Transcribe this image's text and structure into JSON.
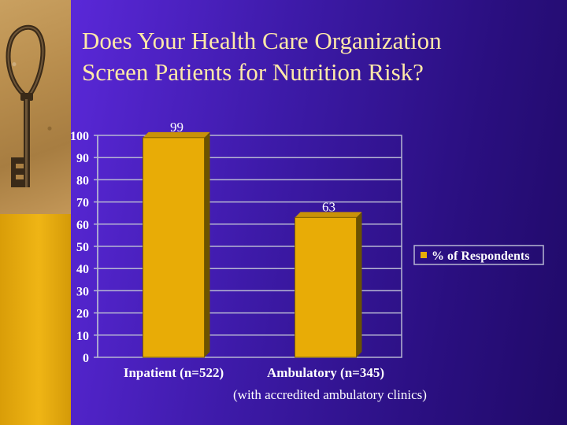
{
  "slide": {
    "title_line1": "Does Your Health Care Organization",
    "title_line2": "Screen Patients for Nutrition Risk?",
    "footnote": "(with accredited ambulatory clinics)"
  },
  "colors": {
    "title_text": "#ffe9a8",
    "bar_front": "#e8ac06",
    "bar_side": "#6b5200",
    "plot_border": "#b6b6d2",
    "label_text": "#ffffff"
  },
  "icons": {
    "key": "key-icon"
  },
  "chart_data": {
    "type": "bar",
    "categories": [
      "Inpatient (n=522)",
      "Ambulatory (n=345)"
    ],
    "series": [
      {
        "name": "% of Respondents",
        "values": [
          99,
          63
        ]
      }
    ],
    "data_labels": [
      "99",
      "63"
    ],
    "title": "",
    "xlabel": "",
    "ylabel": "",
    "ylim": [
      0,
      100
    ],
    "yticks": [
      0,
      10,
      20,
      30,
      40,
      50,
      60,
      70,
      80,
      90,
      100
    ],
    "grid": true,
    "legend": "right"
  }
}
